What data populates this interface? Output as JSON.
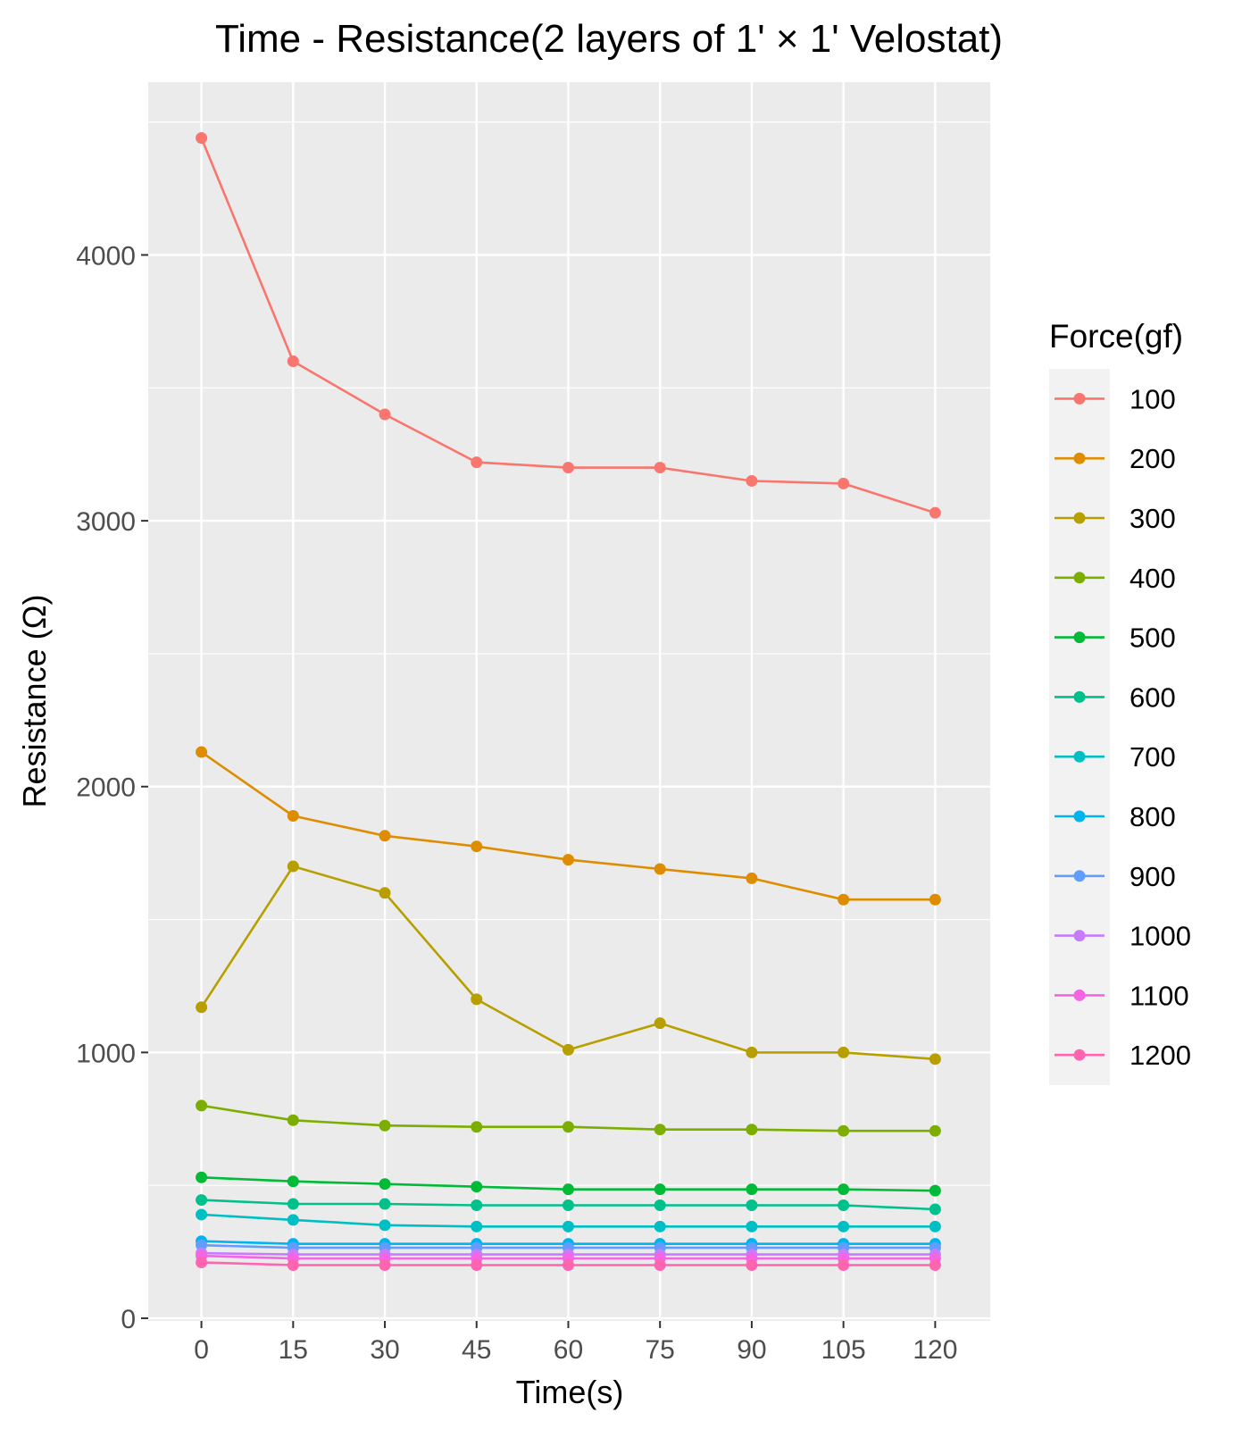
{
  "chart_data": {
    "type": "line",
    "title": "Time - Resistance(2 layers of 1' × 1' Velostat)",
    "xlabel": "Time(s)",
    "ylabel": "Resistance (Ω)",
    "x": [
      0,
      15,
      30,
      45,
      60,
      75,
      90,
      105,
      120
    ],
    "x_tick_labels": [
      "0",
      "15",
      "30",
      "45",
      "60",
      "75",
      "90",
      "105",
      "120"
    ],
    "y_ticks": [
      0,
      1000,
      2000,
      3000,
      4000
    ],
    "y_tick_labels": [
      "0",
      "1000",
      "2000",
      "3000",
      "4000"
    ],
    "xlim": [
      -8.7,
      129
    ],
    "ylim": [
      -10,
      4650
    ],
    "grid": true,
    "legend": {
      "title": "Force(gf)",
      "placement": "right"
    },
    "series": [
      {
        "name": "100",
        "color": "#F8766D",
        "values": [
          4440,
          3600,
          3400,
          3220,
          3200,
          3200,
          3150,
          3140,
          3030
        ]
      },
      {
        "name": "200",
        "color": "#DE8C00",
        "values": [
          2130,
          1890,
          1815,
          1775,
          1725,
          1690,
          1655,
          1575,
          1575
        ]
      },
      {
        "name": "300",
        "color": "#B79F00",
        "values": [
          1170,
          1700,
          1600,
          1200,
          1010,
          1110,
          1000,
          1000,
          975
        ]
      },
      {
        "name": "400",
        "color": "#7CAE00",
        "values": [
          800,
          745,
          725,
          720,
          720,
          710,
          710,
          705,
          705
        ]
      },
      {
        "name": "500",
        "color": "#00BA38",
        "values": [
          530,
          515,
          505,
          495,
          485,
          485,
          485,
          485,
          480
        ]
      },
      {
        "name": "600",
        "color": "#00C08B",
        "values": [
          445,
          430,
          430,
          425,
          425,
          425,
          425,
          425,
          410
        ]
      },
      {
        "name": "700",
        "color": "#00BFC4",
        "values": [
          390,
          370,
          350,
          345,
          345,
          345,
          345,
          345,
          345
        ]
      },
      {
        "name": "800",
        "color": "#00B4F0",
        "values": [
          290,
          280,
          280,
          280,
          280,
          280,
          280,
          280,
          280
        ]
      },
      {
        "name": "900",
        "color": "#619CFF",
        "values": [
          275,
          265,
          265,
          265,
          265,
          265,
          265,
          265,
          265
        ]
      },
      {
        "name": "1000",
        "color": "#C77CFF",
        "values": [
          245,
          240,
          240,
          240,
          240,
          240,
          240,
          240,
          240
        ]
      },
      {
        "name": "1100",
        "color": "#F564E3",
        "values": [
          235,
          225,
          225,
          225,
          225,
          225,
          225,
          225,
          225
        ]
      },
      {
        "name": "1200",
        "color": "#FF64B0",
        "values": [
          210,
          200,
          200,
          200,
          200,
          200,
          200,
          200,
          200
        ]
      }
    ]
  }
}
